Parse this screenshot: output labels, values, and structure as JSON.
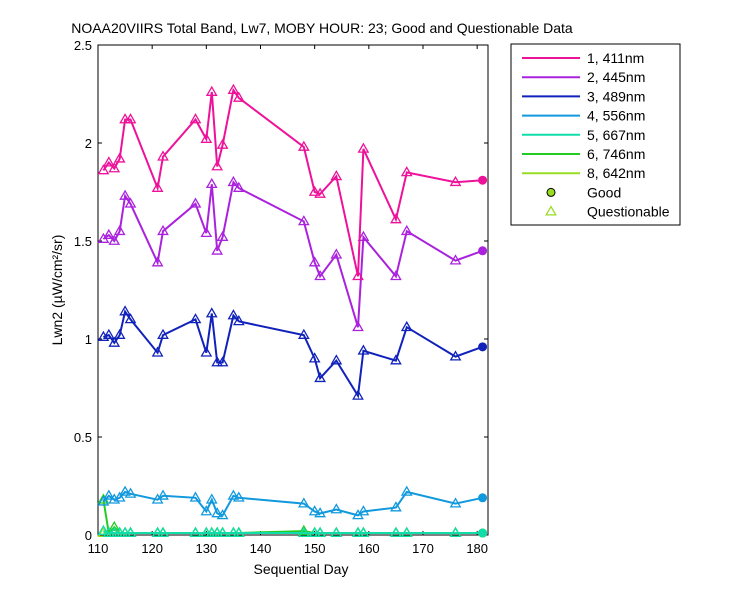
{
  "chart_data": {
    "type": "line",
    "title": "NOAA20VIIRS Total Band, Lw7, MOBY HOUR: 23;  Good and Questionable Data",
    "xlabel": "Sequential Day",
    "ylabel": "Lwn2 (µW/cm²/sr)",
    "xlim": [
      110,
      182
    ],
    "ylim": [
      0,
      2.5
    ],
    "xticks": [
      110,
      120,
      130,
      140,
      150,
      160,
      170,
      180
    ],
    "yticks": [
      0,
      0.5,
      1,
      1.5,
      2,
      2.5
    ],
    "xtick_labels": [
      "110",
      "120",
      "130",
      "140",
      "150",
      "160",
      "170",
      "180"
    ],
    "ytick_labels": [
      "0",
      "0.5",
      "1",
      "1.5",
      "2",
      "2.5"
    ],
    "grid": false,
    "legend_position": "outside-top-right",
    "legend_markers": [
      {
        "label": "Good",
        "marker": "circle",
        "color": "#99dd22"
      },
      {
        "label": "Questionable",
        "marker": "triangle",
        "color": "#99dd22"
      }
    ],
    "x": [
      111,
      112,
      113,
      114,
      115,
      116,
      121,
      122,
      128,
      130,
      131,
      132,
      133,
      135,
      136,
      148,
      150,
      151,
      154,
      158,
      159,
      165,
      167,
      176,
      181
    ],
    "series": [
      {
        "name": "1, 411nm",
        "color": "#ee1199",
        "values": [
          1.86,
          1.9,
          1.87,
          1.92,
          2.12,
          2.12,
          1.77,
          1.93,
          2.12,
          2.02,
          2.26,
          1.88,
          1.99,
          2.27,
          2.23,
          1.98,
          1.75,
          1.74,
          1.83,
          1.32,
          1.97,
          1.61,
          1.85,
          1.8,
          1.81
        ],
        "quality": [
          "Q",
          "Q",
          "Q",
          "Q",
          "Q",
          "Q",
          "Q",
          "Q",
          "Q",
          "Q",
          "Q",
          "Q",
          "Q",
          "Q",
          "Q",
          "Q",
          "Q",
          "Q",
          "Q",
          "Q",
          "Q",
          "Q",
          "Q",
          "Q",
          "G"
        ]
      },
      {
        "name": "2, 445nm",
        "color": "#aa22dd",
        "values": [
          1.51,
          1.53,
          1.5,
          1.55,
          1.73,
          1.69,
          1.39,
          1.55,
          1.69,
          1.54,
          1.79,
          1.45,
          1.52,
          1.8,
          1.77,
          1.6,
          1.39,
          1.32,
          1.43,
          1.06,
          1.52,
          1.32,
          1.55,
          1.4,
          1.45
        ],
        "quality": [
          "Q",
          "Q",
          "Q",
          "Q",
          "Q",
          "Q",
          "Q",
          "Q",
          "Q",
          "Q",
          "Q",
          "Q",
          "Q",
          "Q",
          "Q",
          "Q",
          "Q",
          "Q",
          "Q",
          "Q",
          "Q",
          "Q",
          "Q",
          "Q",
          "G"
        ]
      },
      {
        "name": "3, 489nm",
        "color": "#1122bb",
        "values": [
          1.01,
          1.02,
          0.98,
          1.02,
          1.14,
          1.1,
          0.93,
          1.02,
          1.1,
          0.93,
          1.13,
          0.88,
          0.88,
          1.12,
          1.09,
          1.02,
          0.9,
          0.8,
          0.89,
          0.71,
          0.94,
          0.89,
          1.06,
          0.91,
          0.96
        ],
        "quality": [
          "Q",
          "Q",
          "Q",
          "Q",
          "Q",
          "Q",
          "Q",
          "Q",
          "Q",
          "Q",
          "Q",
          "Q",
          "Q",
          "Q",
          "Q",
          "Q",
          "Q",
          "Q",
          "Q",
          "Q",
          "Q",
          "Q",
          "Q",
          "Q",
          "G"
        ]
      },
      {
        "name": "4, 556nm",
        "color": "#1199dd",
        "values": [
          0.17,
          0.2,
          0.18,
          0.19,
          0.22,
          0.21,
          0.18,
          0.2,
          0.19,
          0.12,
          0.18,
          0.11,
          0.1,
          0.2,
          0.19,
          0.16,
          0.12,
          0.11,
          0.13,
          0.1,
          0.12,
          0.14,
          0.22,
          0.16,
          0.19
        ],
        "quality": [
          "Q",
          "Q",
          "Q",
          "Q",
          "Q",
          "Q",
          "Q",
          "Q",
          "Q",
          "Q",
          "Q",
          "Q",
          "Q",
          "Q",
          "Q",
          "Q",
          "Q",
          "Q",
          "Q",
          "Q",
          "Q",
          "Q",
          "Q",
          "Q",
          "G"
        ]
      },
      {
        "name": "5, 667nm",
        "color": "#11ddaa",
        "values": [
          0.02,
          0.01,
          0.01,
          0.01,
          0.01,
          0.01,
          0.01,
          0.01,
          0.01,
          0.01,
          0.01,
          0.01,
          0.01,
          0.01,
          0.01,
          0.01,
          0.01,
          0.01,
          0.01,
          0.01,
          0.01,
          0.01,
          0.01,
          0.01,
          0.01
        ],
        "quality": [
          "Q",
          "Q",
          "Q",
          "Q",
          "Q",
          "Q",
          "Q",
          "Q",
          "Q",
          "Q",
          "Q",
          "Q",
          "Q",
          "Q",
          "Q",
          "Q",
          "Q",
          "Q",
          "Q",
          "Q",
          "Q",
          "Q",
          "Q",
          "Q",
          "G"
        ]
      },
      {
        "name": "6, 746nm",
        "color": "#22cc22",
        "values": [
          0.18,
          0.01,
          0.04,
          0.01,
          0.01,
          0.01,
          0.01,
          0.01,
          0.01,
          0.01,
          0.01,
          0.01,
          0.01,
          0.01,
          0.01,
          0.02,
          0.01,
          0.01,
          0.01,
          0.01,
          0.01,
          0.01,
          0.01,
          0.01,
          0.01
        ],
        "quality": [
          "Q",
          "Q",
          "Q",
          "Q",
          "Q",
          "Q",
          "Q",
          "Q",
          "Q",
          "Q",
          "Q",
          "Q",
          "Q",
          "Q",
          "Q",
          "Q",
          "Q",
          "Q",
          "Q",
          "Q",
          "Q",
          "Q",
          "Q",
          "Q",
          "G"
        ]
      },
      {
        "name": "8, 642nm",
        "color": "#99dd22",
        "values": [
          0.01,
          0.01,
          0.01,
          0.01,
          0.01,
          0.01,
          0.01,
          0.01,
          0.01,
          0.01,
          0.01,
          0.01,
          0.01,
          0.01,
          0.01,
          0.01,
          0.01,
          0.01,
          0.01,
          0.01,
          0.01,
          0.01,
          0.01,
          0.01,
          0.01
        ],
        "quality": [
          "Q",
          "Q",
          "Q",
          "Q",
          "Q",
          "Q",
          "Q",
          "Q",
          "Q",
          "Q",
          "Q",
          "Q",
          "Q",
          "Q",
          "Q",
          "Q",
          "Q",
          "Q",
          "Q",
          "Q",
          "Q",
          "Q",
          "Q",
          "Q",
          "G"
        ]
      }
    ]
  }
}
